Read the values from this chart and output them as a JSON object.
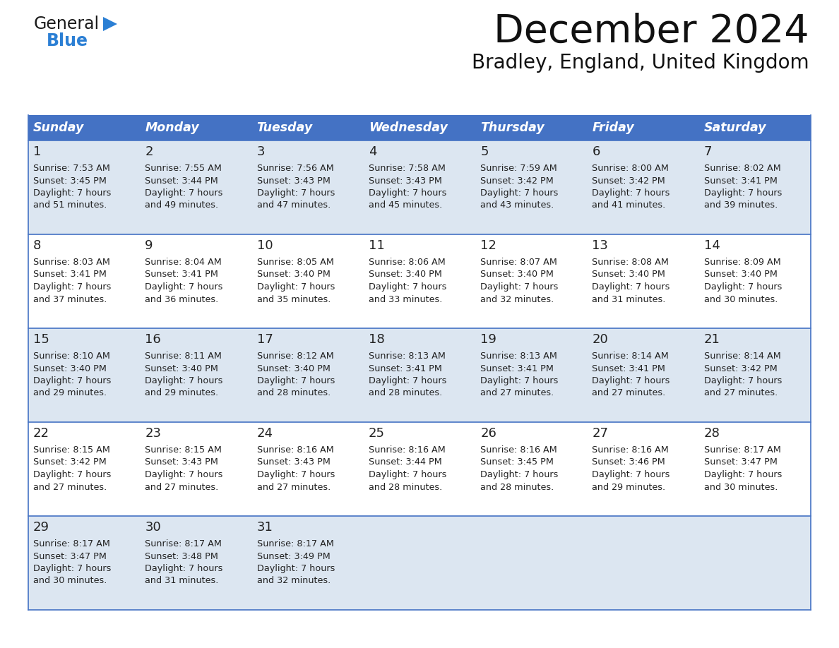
{
  "title": "December 2024",
  "subtitle": "Bradley, England, United Kingdom",
  "header_bg_color": "#4472c4",
  "header_text_color": "#ffffff",
  "row_bg_even": "#dce6f1",
  "row_bg_odd": "#ffffff",
  "border_color": "#4472c4",
  "text_color": "#222222",
  "days_of_week": [
    "Sunday",
    "Monday",
    "Tuesday",
    "Wednesday",
    "Thursday",
    "Friday",
    "Saturday"
  ],
  "weeks": [
    [
      {
        "day": "1",
        "sunrise": "7:53 AM",
        "sunset": "3:45 PM",
        "daylight_line1": "Daylight: 7 hours",
        "daylight_line2": "and 51 minutes."
      },
      {
        "day": "2",
        "sunrise": "7:55 AM",
        "sunset": "3:44 PM",
        "daylight_line1": "Daylight: 7 hours",
        "daylight_line2": "and 49 minutes."
      },
      {
        "day": "3",
        "sunrise": "7:56 AM",
        "sunset": "3:43 PM",
        "daylight_line1": "Daylight: 7 hours",
        "daylight_line2": "and 47 minutes."
      },
      {
        "day": "4",
        "sunrise": "7:58 AM",
        "sunset": "3:43 PM",
        "daylight_line1": "Daylight: 7 hours",
        "daylight_line2": "and 45 minutes."
      },
      {
        "day": "5",
        "sunrise": "7:59 AM",
        "sunset": "3:42 PM",
        "daylight_line1": "Daylight: 7 hours",
        "daylight_line2": "and 43 minutes."
      },
      {
        "day": "6",
        "sunrise": "8:00 AM",
        "sunset": "3:42 PM",
        "daylight_line1": "Daylight: 7 hours",
        "daylight_line2": "and 41 minutes."
      },
      {
        "day": "7",
        "sunrise": "8:02 AM",
        "sunset": "3:41 PM",
        "daylight_line1": "Daylight: 7 hours",
        "daylight_line2": "and 39 minutes."
      }
    ],
    [
      {
        "day": "8",
        "sunrise": "8:03 AM",
        "sunset": "3:41 PM",
        "daylight_line1": "Daylight: 7 hours",
        "daylight_line2": "and 37 minutes."
      },
      {
        "day": "9",
        "sunrise": "8:04 AM",
        "sunset": "3:41 PM",
        "daylight_line1": "Daylight: 7 hours",
        "daylight_line2": "and 36 minutes."
      },
      {
        "day": "10",
        "sunrise": "8:05 AM",
        "sunset": "3:40 PM",
        "daylight_line1": "Daylight: 7 hours",
        "daylight_line2": "and 35 minutes."
      },
      {
        "day": "11",
        "sunrise": "8:06 AM",
        "sunset": "3:40 PM",
        "daylight_line1": "Daylight: 7 hours",
        "daylight_line2": "and 33 minutes."
      },
      {
        "day": "12",
        "sunrise": "8:07 AM",
        "sunset": "3:40 PM",
        "daylight_line1": "Daylight: 7 hours",
        "daylight_line2": "and 32 minutes."
      },
      {
        "day": "13",
        "sunrise": "8:08 AM",
        "sunset": "3:40 PM",
        "daylight_line1": "Daylight: 7 hours",
        "daylight_line2": "and 31 minutes."
      },
      {
        "day": "14",
        "sunrise": "8:09 AM",
        "sunset": "3:40 PM",
        "daylight_line1": "Daylight: 7 hours",
        "daylight_line2": "and 30 minutes."
      }
    ],
    [
      {
        "day": "15",
        "sunrise": "8:10 AM",
        "sunset": "3:40 PM",
        "daylight_line1": "Daylight: 7 hours",
        "daylight_line2": "and 29 minutes."
      },
      {
        "day": "16",
        "sunrise": "8:11 AM",
        "sunset": "3:40 PM",
        "daylight_line1": "Daylight: 7 hours",
        "daylight_line2": "and 29 minutes."
      },
      {
        "day": "17",
        "sunrise": "8:12 AM",
        "sunset": "3:40 PM",
        "daylight_line1": "Daylight: 7 hours",
        "daylight_line2": "and 28 minutes."
      },
      {
        "day": "18",
        "sunrise": "8:13 AM",
        "sunset": "3:41 PM",
        "daylight_line1": "Daylight: 7 hours",
        "daylight_line2": "and 28 minutes."
      },
      {
        "day": "19",
        "sunrise": "8:13 AM",
        "sunset": "3:41 PM",
        "daylight_line1": "Daylight: 7 hours",
        "daylight_line2": "and 27 minutes."
      },
      {
        "day": "20",
        "sunrise": "8:14 AM",
        "sunset": "3:41 PM",
        "daylight_line1": "Daylight: 7 hours",
        "daylight_line2": "and 27 minutes."
      },
      {
        "day": "21",
        "sunrise": "8:14 AM",
        "sunset": "3:42 PM",
        "daylight_line1": "Daylight: 7 hours",
        "daylight_line2": "and 27 minutes."
      }
    ],
    [
      {
        "day": "22",
        "sunrise": "8:15 AM",
        "sunset": "3:42 PM",
        "daylight_line1": "Daylight: 7 hours",
        "daylight_line2": "and 27 minutes."
      },
      {
        "day": "23",
        "sunrise": "8:15 AM",
        "sunset": "3:43 PM",
        "daylight_line1": "Daylight: 7 hours",
        "daylight_line2": "and 27 minutes."
      },
      {
        "day": "24",
        "sunrise": "8:16 AM",
        "sunset": "3:43 PM",
        "daylight_line1": "Daylight: 7 hours",
        "daylight_line2": "and 27 minutes."
      },
      {
        "day": "25",
        "sunrise": "8:16 AM",
        "sunset": "3:44 PM",
        "daylight_line1": "Daylight: 7 hours",
        "daylight_line2": "and 28 minutes."
      },
      {
        "day": "26",
        "sunrise": "8:16 AM",
        "sunset": "3:45 PM",
        "daylight_line1": "Daylight: 7 hours",
        "daylight_line2": "and 28 minutes."
      },
      {
        "day": "27",
        "sunrise": "8:16 AM",
        "sunset": "3:46 PM",
        "daylight_line1": "Daylight: 7 hours",
        "daylight_line2": "and 29 minutes."
      },
      {
        "day": "28",
        "sunrise": "8:17 AM",
        "sunset": "3:47 PM",
        "daylight_line1": "Daylight: 7 hours",
        "daylight_line2": "and 30 minutes."
      }
    ],
    [
      {
        "day": "29",
        "sunrise": "8:17 AM",
        "sunset": "3:47 PM",
        "daylight_line1": "Daylight: 7 hours",
        "daylight_line2": "and 30 minutes."
      },
      {
        "day": "30",
        "sunrise": "8:17 AM",
        "sunset": "3:48 PM",
        "daylight_line1": "Daylight: 7 hours",
        "daylight_line2": "and 31 minutes."
      },
      {
        "day": "31",
        "sunrise": "8:17 AM",
        "sunset": "3:49 PM",
        "daylight_line1": "Daylight: 7 hours",
        "daylight_line2": "and 32 minutes."
      },
      null,
      null,
      null,
      null
    ]
  ],
  "logo_general_color": "#1a1a1a",
  "logo_blue_color": "#2b7fd4",
  "logo_triangle_color": "#2b7fd4"
}
